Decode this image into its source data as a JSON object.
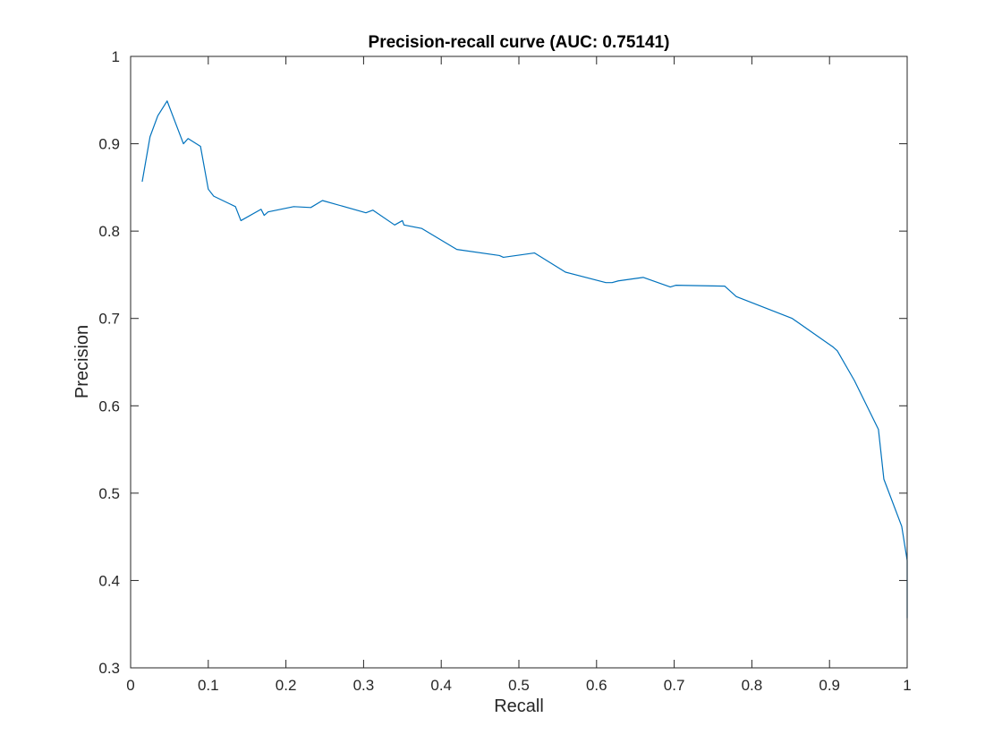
{
  "chart_data": {
    "type": "line",
    "title": "Precision-recall curve (AUC: 0.75141)",
    "xlabel": "Recall",
    "ylabel": "Precision",
    "xlim": [
      0,
      1
    ],
    "ylim": [
      0.3,
      1
    ],
    "xticks": [
      0,
      0.1,
      0.2,
      0.3,
      0.4,
      0.5,
      0.6,
      0.7,
      0.8,
      0.9,
      1
    ],
    "xtick_labels": [
      "0",
      "0.1",
      "0.2",
      "0.3",
      "0.4",
      "0.5",
      "0.6",
      "0.7",
      "0.8",
      "0.9",
      "1"
    ],
    "yticks": [
      0.3,
      0.4,
      0.5,
      0.6,
      0.7,
      0.8,
      0.9,
      1
    ],
    "ytick_labels": [
      "0.3",
      "0.4",
      "0.5",
      "0.6",
      "0.7",
      "0.8",
      "0.9",
      "1"
    ],
    "grid": false,
    "line_color": "#0072BD",
    "series": [
      {
        "name": "Precision-recall",
        "x": [
          0.015,
          0.025,
          0.035,
          0.047,
          0.068,
          0.074,
          0.09,
          0.1,
          0.107,
          0.135,
          0.142,
          0.168,
          0.172,
          0.177,
          0.21,
          0.232,
          0.247,
          0.303,
          0.312,
          0.34,
          0.35,
          0.352,
          0.375,
          0.42,
          0.475,
          0.48,
          0.52,
          0.56,
          0.612,
          0.62,
          0.628,
          0.66,
          0.695,
          0.702,
          0.765,
          0.78,
          0.852,
          0.905,
          0.91,
          0.932,
          0.963,
          0.97,
          0.993,
          1.0,
          1.0
        ],
        "y": [
          0.857,
          0.908,
          0.932,
          0.949,
          0.9,
          0.906,
          0.897,
          0.848,
          0.84,
          0.828,
          0.812,
          0.825,
          0.818,
          0.822,
          0.828,
          0.827,
          0.835,
          0.821,
          0.824,
          0.807,
          0.812,
          0.807,
          0.803,
          0.779,
          0.772,
          0.77,
          0.775,
          0.753,
          0.741,
          0.741,
          0.743,
          0.747,
          0.736,
          0.738,
          0.737,
          0.725,
          0.7,
          0.667,
          0.663,
          0.629,
          0.573,
          0.516,
          0.462,
          0.423,
          0.357
        ]
      }
    ]
  }
}
